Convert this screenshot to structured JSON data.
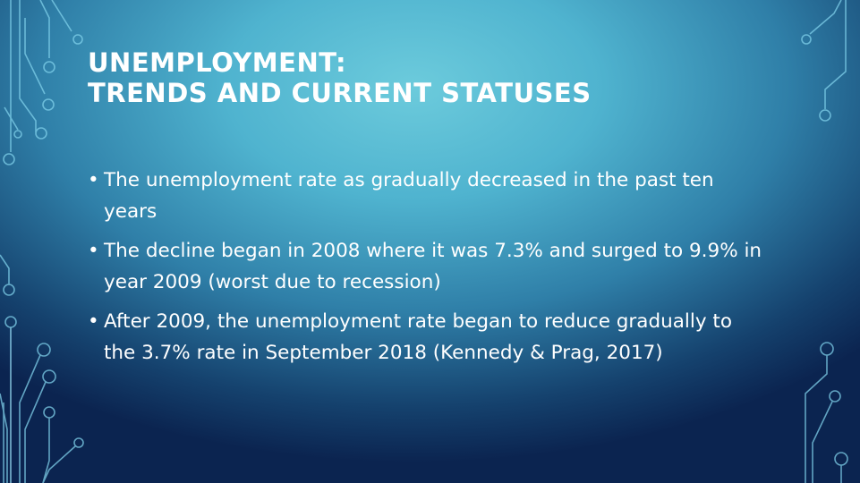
{
  "slide": {
    "title_line1": "UNEMPLOYMENT:",
    "title_line2": "TRENDS AND CURRENT STATUSES",
    "bullets": [
      "The unemployment rate as gradually decreased in the past ten years",
      "The decline began in 2008 where it was 7.3% and surged to 9.9% in year 2009 (worst due to recession)",
      "After 2009, the unemployment rate began to reduce gradually to the 3.7% rate in September 2018 (Kennedy & Prag, 2017)"
    ],
    "bullet_glyph": "•"
  },
  "theme": {
    "accent": "#7fd8f0",
    "background_top": "#6ccbdc",
    "background_bottom": "#0b2450"
  }
}
